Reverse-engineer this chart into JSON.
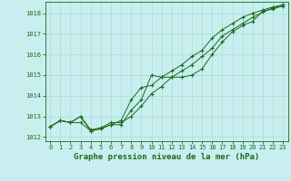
{
  "xlabel": "Graphe pression niveau de la mer (hPa)",
  "x": [
    0,
    1,
    2,
    3,
    4,
    5,
    6,
    7,
    8,
    9,
    10,
    11,
    12,
    13,
    14,
    15,
    16,
    17,
    18,
    19,
    20,
    21,
    22,
    23
  ],
  "line1": [
    1012.5,
    1012.8,
    1012.7,
    1012.7,
    1012.3,
    1012.4,
    1012.6,
    1012.6,
    1013.3,
    1013.8,
    1015.0,
    1014.9,
    1014.9,
    1014.9,
    1015.0,
    1015.3,
    1016.0,
    1016.6,
    1017.1,
    1017.4,
    1017.6,
    1018.1,
    1018.2,
    1018.35
  ],
  "line2": [
    1012.5,
    1012.8,
    1012.7,
    1013.0,
    1012.3,
    1012.4,
    1012.6,
    1012.8,
    1013.8,
    1014.4,
    1014.5,
    1014.9,
    1015.2,
    1015.5,
    1015.9,
    1016.2,
    1016.8,
    1017.2,
    1017.5,
    1017.8,
    1018.0,
    1018.15,
    1018.3,
    1018.4
  ],
  "line3": [
    1012.5,
    1012.8,
    1012.7,
    1013.0,
    1012.35,
    1012.45,
    1012.7,
    1012.7,
    1013.0,
    1013.5,
    1014.1,
    1014.45,
    1014.9,
    1015.2,
    1015.5,
    1015.9,
    1016.3,
    1016.9,
    1017.2,
    1017.5,
    1017.8,
    1018.05,
    1018.25,
    1018.4
  ],
  "bg_color": "#c8eef0",
  "line_color": "#1a6b1a",
  "grid_color": "#aaddcc",
  "ylim": [
    1011.8,
    1018.55
  ],
  "xlim": [
    -0.5,
    23.5
  ],
  "yticks": [
    1012,
    1013,
    1014,
    1015,
    1016,
    1017,
    1018
  ],
  "xticks": [
    0,
    1,
    2,
    3,
    4,
    5,
    6,
    7,
    8,
    9,
    10,
    11,
    12,
    13,
    14,
    15,
    16,
    17,
    18,
    19,
    20,
    21,
    22,
    23
  ],
  "xtick_labels": [
    "0",
    "1",
    "2",
    "3",
    "4",
    "5",
    "6",
    "7",
    "8",
    "9",
    "10",
    "11",
    "12",
    "13",
    "14",
    "15",
    "16",
    "17",
    "18",
    "19",
    "20",
    "21",
    "22",
    "23"
  ],
  "label_fontsize": 6.5,
  "tick_fontsize": 5.0,
  "label_color": "#1a6b1a",
  "tick_color": "#1a6b1a"
}
